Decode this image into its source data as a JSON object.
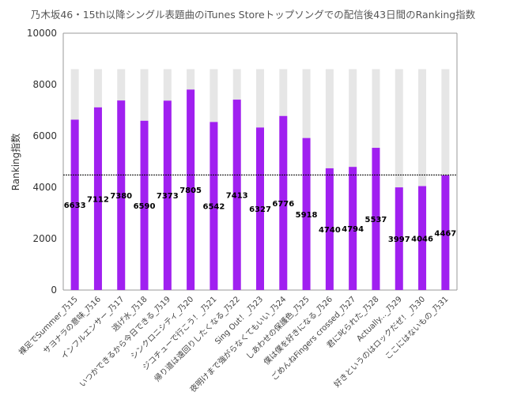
{
  "chart_data": {
    "type": "bar",
    "title": "乃木坂46・15th以降シングル表題曲のiTunes Storeトップソングでの配信後43日間のRanking指数",
    "ylabel": "Ranking指数",
    "xlabel": "",
    "ylim": [
      0,
      10000
    ],
    "yticks": [
      0,
      2000,
      4000,
      6000,
      8000,
      10000
    ],
    "grid": false,
    "legend": "none",
    "max_value": 8600,
    "reference_line": 4480,
    "categories": [
      "裸足でSummer_乃15",
      "サヨナラの意味_乃16",
      "インフルエンサー_乃17",
      "逃げ水_乃18",
      "いつかできるから今日できる_乃19",
      "シンクロニシティ_乃20",
      "ジコチューで行こう！_乃21",
      "帰り道は遠回りしたくなる_乃22",
      "Sing Out！_乃23",
      "夜明けまで強がらなくてもいい_乃24",
      "しあわせの保護色_乃25",
      "僕は僕を好きになる_乃26",
      "ごめんねFingers crossed_乃27",
      "君に叱られた_乃28",
      "Actually..._乃29",
      "好きというのはロックだぜ！_乃30",
      "ここにはないもの_乃31"
    ],
    "values": [
      6633,
      7112,
      7380,
      6590,
      7373,
      7805,
      6542,
      7413,
      6327,
      6776,
      5918,
      4740,
      4794,
      5537,
      3997,
      4046,
      4467
    ],
    "value_labels": [
      "6633",
      "7112",
      "7380",
      "6590",
      "7373",
      "7805",
      "6542",
      "7413",
      "6327",
      "6776",
      "5918",
      "4740",
      "4794",
      "5537",
      "3997",
      "4046",
      "4467"
    ],
    "colors": {
      "bar": "#a020f0",
      "background_bar": "#e6e6e6",
      "axis": "#999999",
      "reference_line": "#000000"
    }
  }
}
